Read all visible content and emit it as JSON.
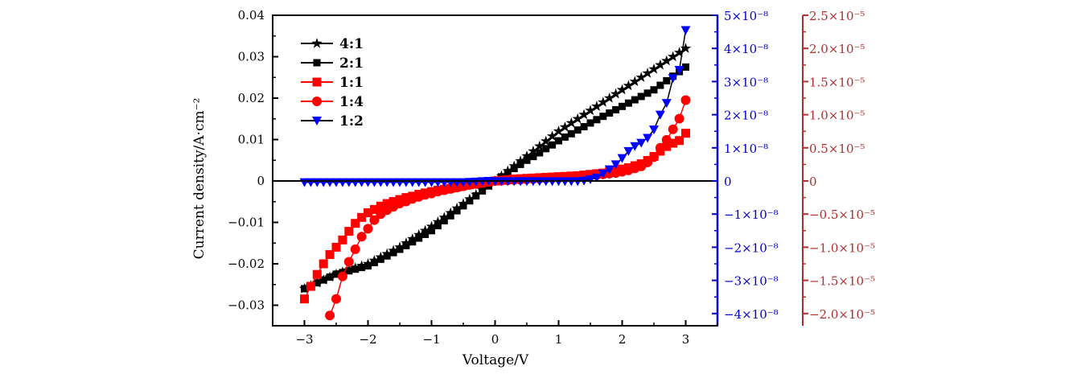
{
  "chart_data": {
    "type": "line",
    "title": "",
    "xlabel": "Voltage/V",
    "ylabel": "Current density/A·cm⁻²",
    "xlim": [
      -3.5,
      3.5
    ],
    "xticks": [
      -3,
      -2,
      -1,
      0,
      1,
      2,
      3
    ],
    "xtick_labels": [
      "−3",
      "−2",
      "−1",
      "0",
      "1",
      "2",
      "3"
    ],
    "grid": false,
    "legend_position": "top-left",
    "axes": {
      "left": {
        "color": "#000000",
        "ylim": [
          -0.035,
          0.04
        ],
        "ticks": [
          -0.03,
          -0.02,
          -0.01,
          0,
          0.01,
          0.02,
          0.03,
          0.04
        ],
        "tick_labels": [
          "−0.03",
          "−0.02",
          "−0.01",
          "0",
          "0.01",
          "0.02",
          "0.03",
          "0.04"
        ]
      },
      "right_blue": {
        "color": "#0000cc",
        "unit_scale": "1e-8",
        "ylim": [
          -4.37,
          5
        ],
        "ticks": [
          -4,
          -3,
          -2,
          -1,
          0,
          1,
          2,
          3,
          4,
          5
        ],
        "tick_labels": [
          "−4×10⁻⁸",
          "−3×10⁻⁸",
          "−2×10⁻⁸",
          "−1×10⁻⁸",
          "0",
          "1×10⁻⁸",
          "2×10⁻⁸",
          "3×10⁻⁸",
          "4×10⁻⁸",
          "5×10⁻⁸"
        ]
      },
      "right_red": {
        "color": "#b03030",
        "unit_scale": "1e-5",
        "ylim": [
          -2.19,
          2.5
        ],
        "ticks": [
          -2,
          -1.5,
          -1,
          -0.5,
          0,
          0.5,
          1,
          1.5,
          2,
          2.5
        ],
        "tick_labels": [
          "−2.0×10⁻⁵",
          "−1.5×10⁻⁵",
          "−1.0×10⁻⁵",
          "−0.5×10⁻⁵",
          "0",
          "0.5×10⁻⁵",
          "1.0×10⁻⁵",
          "1.5×10⁻⁵",
          "2.0×10⁻⁵",
          "2.5×10⁻⁵"
        ]
      }
    },
    "series": [
      {
        "name": "4:1",
        "axis": "left",
        "color": "#000000",
        "marker": "star",
        "x_start": -3.0,
        "x_step": 0.1,
        "values": [
          -0.026,
          -0.0253,
          -0.0246,
          -0.0239,
          -0.0232,
          -0.0225,
          -0.022,
          -0.0215,
          -0.021,
          -0.0205,
          -0.02,
          -0.0192,
          -0.0184,
          -0.0176,
          -0.0168,
          -0.016,
          -0.015,
          -0.014,
          -0.013,
          -0.012,
          -0.011,
          -0.0099,
          -0.0088,
          -0.0077,
          -0.0066,
          -0.0055,
          -0.0044,
          -0.0033,
          -0.0022,
          -0.0011,
          0,
          0.0012,
          0.0024,
          0.0036,
          0.0048,
          0.006,
          0.0072,
          0.0084,
          0.0096,
          0.0108,
          0.012,
          0.013,
          0.014,
          0.015,
          0.016,
          0.017,
          0.018,
          0.019,
          0.02,
          0.021,
          0.022,
          0.023,
          0.024,
          0.025,
          0.026,
          0.027,
          0.028,
          0.029,
          0.03,
          0.031,
          0.032
        ]
      },
      {
        "name": "2:1",
        "axis": "left",
        "color": "#000000",
        "marker": "square-small",
        "x_start": -3.0,
        "x_step": 0.1,
        "values": [
          -0.026,
          -0.0253,
          -0.0246,
          -0.0239,
          -0.0232,
          -0.0225,
          -0.0221,
          -0.0217,
          -0.0213,
          -0.0209,
          -0.0205,
          -0.0197,
          -0.0189,
          -0.0181,
          -0.0173,
          -0.0165,
          -0.0156,
          -0.0147,
          -0.0138,
          -0.0129,
          -0.012,
          -0.0108,
          -0.0096,
          -0.0084,
          -0.0072,
          -0.006,
          -0.0048,
          -0.0036,
          -0.0024,
          -0.0012,
          0,
          0.001,
          0.002,
          0.003,
          0.004,
          0.005,
          0.0059,
          0.0068,
          0.0078,
          0.0087,
          0.0097,
          0.0106,
          0.0114,
          0.0123,
          0.0131,
          0.014,
          0.0148,
          0.0156,
          0.0164,
          0.0172,
          0.018,
          0.0188,
          0.0196,
          0.0204,
          0.0212,
          0.022,
          0.0231,
          0.0242,
          0.0253,
          0.0264,
          0.0275
        ]
      },
      {
        "name": "1:1",
        "axis": "right_red",
        "color": "#ff0000",
        "marker": "square",
        "x_start": -3.0,
        "x_step": 0.1,
        "values": [
          -1.78,
          -1.59,
          -1.41,
          -1.25,
          -1.11,
          -1.0,
          -0.89,
          -0.76,
          -0.64,
          -0.55,
          -0.48,
          -0.43,
          -0.38,
          -0.34,
          -0.31,
          -0.28,
          -0.25,
          -0.23,
          -0.2,
          -0.18,
          -0.16,
          -0.14,
          -0.125,
          -0.11,
          -0.09,
          -0.07,
          -0.055,
          -0.04,
          -0.025,
          -0.01,
          0,
          0.01,
          0.02,
          0.03,
          0.035,
          0.04,
          0.045,
          0.05,
          0.055,
          0.06,
          0.065,
          0.07,
          0.075,
          0.08,
          0.09,
          0.1,
          0.11,
          0.12,
          0.14,
          0.16,
          0.18,
          0.2,
          0.23,
          0.26,
          0.31,
          0.37,
          0.45,
          0.52,
          0.57,
          0.61,
          0.72
        ]
      },
      {
        "name": "1:4",
        "axis": "right_red",
        "color": "#ff0000",
        "marker": "circle",
        "x_start": -2.6,
        "x_step": 0.1,
        "values": [
          -2.03,
          -1.78,
          -1.44,
          -1.22,
          -1.03,
          -0.84,
          -0.72,
          -0.59,
          -0.5,
          -0.44,
          -0.39,
          -0.34,
          -0.31,
          -0.27,
          -0.24,
          -0.21,
          -0.19,
          -0.16,
          -0.14,
          -0.12,
          -0.1,
          -0.08,
          -0.06,
          -0.045,
          -0.03,
          -0.015,
          0,
          0.005,
          0.01,
          0.015,
          0.02,
          0.025,
          0.03,
          0.035,
          0.04,
          0.045,
          0.05,
          0.055,
          0.06,
          0.065,
          0.07,
          0.08,
          0.09,
          0.1,
          0.11,
          0.12,
          0.14,
          0.16,
          0.19,
          0.22,
          0.28,
          0.36,
          0.5,
          0.62,
          0.78,
          0.94,
          1.22
        ]
      },
      {
        "name": "1:2",
        "axis": "right_blue",
        "color": "#0000ff",
        "marker": "triangle-down",
        "x_start": -3.0,
        "x_step": 0.1,
        "values": [
          -0.04,
          -0.04,
          -0.04,
          -0.04,
          -0.04,
          -0.04,
          -0.04,
          -0.04,
          -0.04,
          -0.04,
          -0.04,
          -0.04,
          -0.04,
          -0.04,
          -0.04,
          -0.04,
          -0.04,
          -0.04,
          -0.04,
          -0.04,
          -0.04,
          -0.04,
          -0.04,
          -0.04,
          -0.04,
          -0.04,
          -0.03,
          -0.02,
          -0.01,
          0,
          -0.01,
          -0.01,
          -0.01,
          -0.01,
          -0.01,
          -0.01,
          -0.01,
          -0.01,
          -0.01,
          -0.01,
          -0.01,
          -0.01,
          -0.01,
          -0.01,
          0.01,
          0.05,
          0.1,
          0.22,
          0.35,
          0.5,
          0.69,
          0.9,
          1.05,
          1.15,
          1.3,
          1.55,
          2.0,
          2.35,
          3.1,
          3.35,
          4.55
        ]
      }
    ]
  }
}
